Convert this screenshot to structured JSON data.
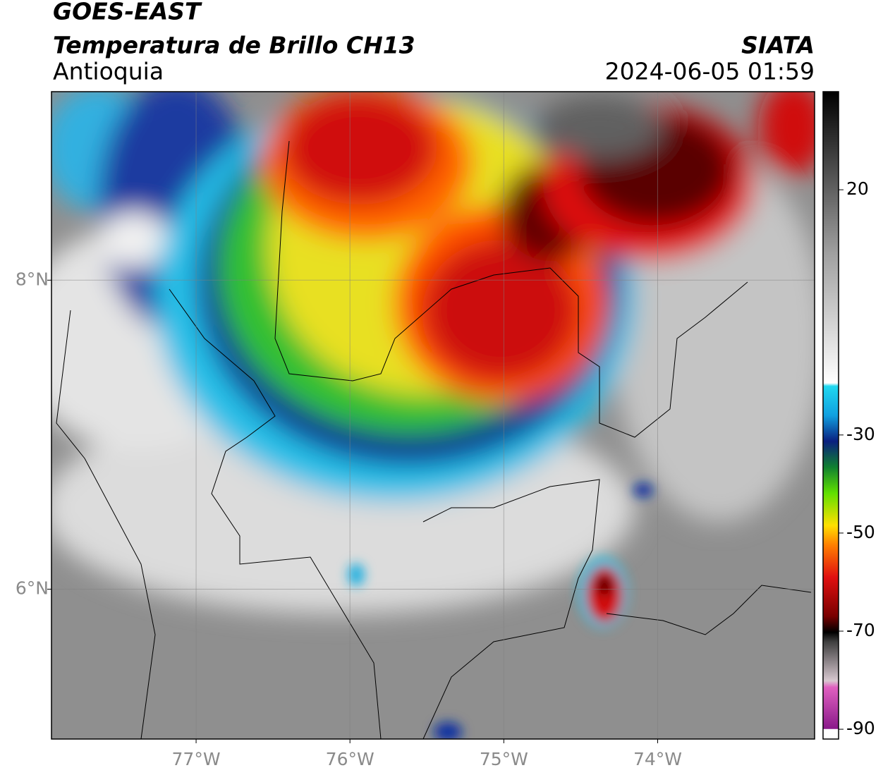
{
  "header": {
    "title": "GOES-EAST",
    "subtitle": "Temperatura de Brillo CH13",
    "region": "Antioquia",
    "source": "SIATA",
    "timestamp": "2024-06-05 01:59"
  },
  "map": {
    "xlim": [
      -77.94,
      -72.98
    ],
    "ylim": [
      5.03,
      9.22
    ],
    "xticks": [
      {
        "value": -77,
        "label": "77°W"
      },
      {
        "value": -76,
        "label": "76°W"
      },
      {
        "value": -75,
        "label": "75°W"
      },
      {
        "value": -74,
        "label": "74°W"
      }
    ],
    "yticks": [
      {
        "value": 8,
        "label": "8°N"
      },
      {
        "value": 6,
        "label": "6°N"
      }
    ],
    "grid": true
  },
  "colorbar": {
    "lim": [
      -92,
      40
    ],
    "ticks": [
      20,
      -30,
      -50,
      -70,
      -90
    ]
  }
}
